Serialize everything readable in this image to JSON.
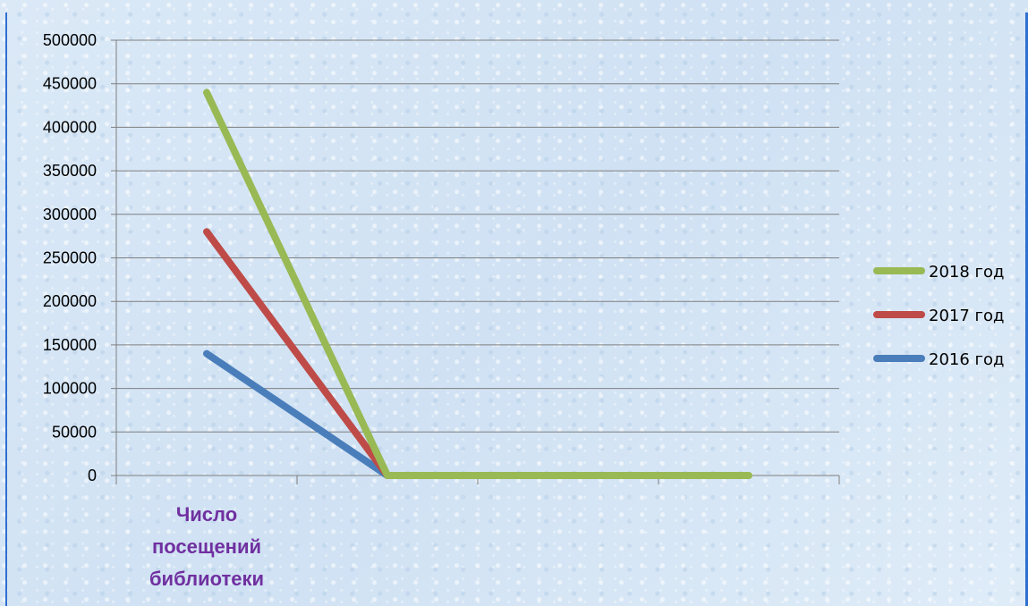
{
  "chart_data": {
    "type": "line",
    "title": "",
    "categories": [
      "Число посещений библиотеки",
      "",
      "",
      ""
    ],
    "category_label_lines": [
      "Число",
      "посещений",
      "библиотеки"
    ],
    "y_ticks": [
      "0",
      "50000",
      "100000",
      "150000",
      "200000",
      "250000",
      "300000",
      "350000",
      "400000",
      "450000",
      "500000"
    ],
    "ylim": [
      0,
      500000
    ],
    "x_points": [
      0.5,
      1.5,
      2.5,
      3.5
    ],
    "series": [
      {
        "name": "2016 год",
        "color": "#4a7ebb",
        "x": [
          0.5,
          1.5
        ],
        "values": [
          140000,
          0
        ]
      },
      {
        "name": "2017 год",
        "color": "#be4b48",
        "x": [
          0.5,
          1.5
        ],
        "values": [
          280000,
          0
        ]
      },
      {
        "name": "2018 год",
        "color": "#98b954",
        "x": [
          0.5,
          1.5,
          2.5,
          3.5
        ],
        "values": [
          440000,
          0,
          0,
          0
        ]
      }
    ],
    "legend_order": [
      "2018 год",
      "2017 год",
      "2016 год"
    ],
    "legend": "right",
    "grid": true
  }
}
